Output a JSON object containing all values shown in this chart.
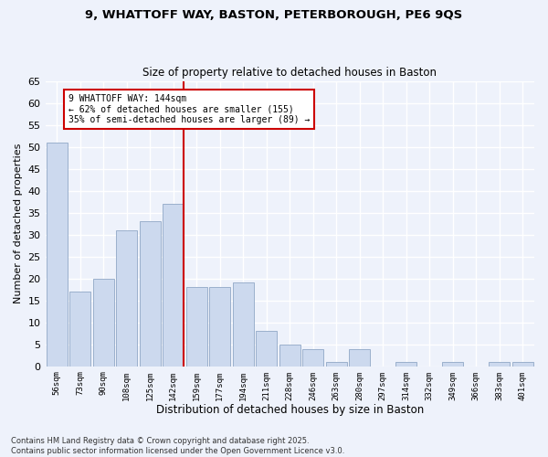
{
  "title_line1": "9, WHATTOFF WAY, BASTON, PETERBOROUGH, PE6 9QS",
  "title_line2": "Size of property relative to detached houses in Baston",
  "xlabel": "Distribution of detached houses by size in Baston",
  "ylabel": "Number of detached properties",
  "categories": [
    "56sqm",
    "73sqm",
    "90sqm",
    "108sqm",
    "125sqm",
    "142sqm",
    "159sqm",
    "177sqm",
    "194sqm",
    "211sqm",
    "228sqm",
    "246sqm",
    "263sqm",
    "280sqm",
    "297sqm",
    "314sqm",
    "332sqm",
    "349sqm",
    "366sqm",
    "383sqm",
    "401sqm"
  ],
  "values": [
    51,
    17,
    20,
    31,
    33,
    37,
    18,
    18,
    19,
    8,
    5,
    4,
    1,
    4,
    0,
    1,
    0,
    1,
    0,
    1,
    1
  ],
  "bar_color": "#ccd9ee",
  "bar_edge_color": "#9ab0cc",
  "reference_line_index": 5,
  "reference_label": "9 WHATTOFF WAY: 144sqm",
  "annotation_line1": "← 62% of detached houses are smaller (155)",
  "annotation_line2": "35% of semi-detached houses are larger (89) →",
  "annotation_box_color": "#ffffff",
  "annotation_box_edge": "#cc0000",
  "ref_line_color": "#cc0000",
  "background_color": "#eef2fb",
  "grid_color": "#ffffff",
  "footer_line1": "Contains HM Land Registry data © Crown copyright and database right 2025.",
  "footer_line2": "Contains public sector information licensed under the Open Government Licence v3.0.",
  "ylim": [
    0,
    65
  ],
  "yticks": [
    0,
    5,
    10,
    15,
    20,
    25,
    30,
    35,
    40,
    45,
    50,
    55,
    60,
    65
  ]
}
